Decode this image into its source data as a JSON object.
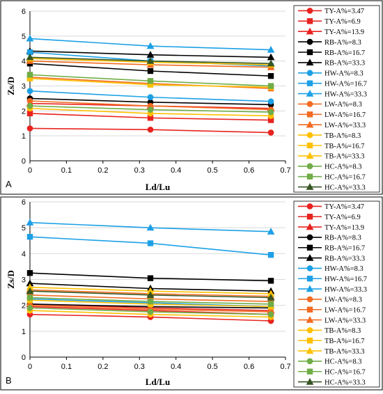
{
  "chart_data": [
    {
      "panel": "A",
      "type": "line",
      "xlabel": "Ld/Lu",
      "ylabel": "Zs/D",
      "xlim": [
        0,
        0.7
      ],
      "ylim": [
        0,
        6
      ],
      "xticks": [
        0,
        0.1,
        0.2,
        0.3,
        0.4,
        0.5,
        0.6,
        0.7
      ],
      "yticks": [
        0,
        1,
        2,
        3,
        4,
        5,
        6
      ],
      "x": [
        0,
        0.33,
        0.66
      ],
      "grid": "horizontal",
      "legend_position": "right",
      "series": [
        {
          "name": "TY-A%=3.47",
          "color": "#e8231f",
          "marker": "circle",
          "values": [
            1.3,
            1.25,
            1.13
          ]
        },
        {
          "name": "TY-A%=6.9",
          "color": "#e8231f",
          "marker": "square",
          "values": [
            1.9,
            1.72,
            1.63
          ]
        },
        {
          "name": "TY-A%=13.9",
          "color": "#e8231f",
          "marker": "triangle",
          "values": [
            2.3,
            2.2,
            2.1
          ]
        },
        {
          "name": "RB-A%=8.3",
          "color": "#000000",
          "marker": "circle",
          "values": [
            2.5,
            2.35,
            2.25
          ]
        },
        {
          "name": "RB-A%=16.7",
          "color": "#000000",
          "marker": "square",
          "values": [
            3.9,
            3.6,
            3.4
          ]
        },
        {
          "name": "RB-A%=33.3",
          "color": "#000000",
          "marker": "triangle",
          "values": [
            4.4,
            4.25,
            4.15
          ]
        },
        {
          "name": "HW-A%=8.3",
          "color": "#1ca0e6",
          "marker": "circle",
          "values": [
            2.8,
            2.55,
            2.38
          ]
        },
        {
          "name": "HW-A%=16.7",
          "color": "#1ca0e6",
          "marker": "square",
          "values": [
            4.35,
            4.0,
            3.8
          ]
        },
        {
          "name": "HW-A%=33.3",
          "color": "#1ca0e6",
          "marker": "triangle",
          "values": [
            4.9,
            4.6,
            4.45
          ]
        },
        {
          "name": "LW-A%=8.3",
          "color": "#f26b21",
          "marker": "circle",
          "values": [
            2.4,
            2.2,
            2.05
          ]
        },
        {
          "name": "LW-A%=16.7",
          "color": "#f26b21",
          "marker": "square",
          "values": [
            3.35,
            3.1,
            2.9
          ]
        },
        {
          "name": "LW-A%=33.3",
          "color": "#f26b21",
          "marker": "triangle",
          "values": [
            4.0,
            3.85,
            3.75
          ]
        },
        {
          "name": "TB-A%=8.3",
          "color": "#ffc000",
          "marker": "circle",
          "values": [
            2.1,
            1.9,
            1.8
          ]
        },
        {
          "name": "TB-A%=16.7",
          "color": "#ffc000",
          "marker": "square",
          "values": [
            3.3,
            3.05,
            2.95
          ]
        },
        {
          "name": "TB-A%=33.3",
          "color": "#ffc000",
          "marker": "triangle",
          "values": [
            4.1,
            3.95,
            3.85
          ]
        },
        {
          "name": "HC-A%=8.3",
          "color": "#70ad47",
          "marker": "circle",
          "values": [
            2.2,
            2.05,
            1.95
          ]
        },
        {
          "name": "HC-A%=16.7",
          "color": "#70ad47",
          "marker": "square",
          "values": [
            3.45,
            3.2,
            3.0
          ]
        },
        {
          "name": "HC-A%=33.3",
          "color": "#375623",
          "marker": "triangle",
          "values": [
            4.15,
            4.0,
            3.9
          ]
        }
      ]
    },
    {
      "panel": "B",
      "type": "line",
      "xlabel": "Ld/Lu",
      "ylabel": "Zs/D",
      "xlim": [
        0,
        0.7
      ],
      "ylim": [
        0,
        6
      ],
      "xticks": [
        0,
        0.1,
        0.2,
        0.3,
        0.4,
        0.5,
        0.6,
        0.7
      ],
      "yticks": [
        0,
        1,
        2,
        3,
        4,
        5,
        6
      ],
      "x": [
        0,
        0.33,
        0.66
      ],
      "grid": "horizontal",
      "legend_position": "right",
      "series": [
        {
          "name": "TY-A%=3.47",
          "color": "#e8231f",
          "marker": "circle",
          "values": [
            1.65,
            1.55,
            1.4
          ]
        },
        {
          "name": "TY-A%=6.9",
          "color": "#e8231f",
          "marker": "square",
          "values": [
            1.95,
            1.8,
            1.65
          ]
        },
        {
          "name": "TY-A%=13.9",
          "color": "#e8231f",
          "marker": "triangle",
          "values": [
            2.05,
            1.9,
            1.8
          ]
        },
        {
          "name": "RB-A%=8.3",
          "color": "#000000",
          "marker": "circle",
          "values": [
            2.05,
            1.95,
            1.9
          ]
        },
        {
          "name": "RB-A%=16.7",
          "color": "#000000",
          "marker": "square",
          "values": [
            3.25,
            3.05,
            2.95
          ]
        },
        {
          "name": "RB-A%=33.3",
          "color": "#000000",
          "marker": "triangle",
          "values": [
            2.85,
            2.65,
            2.55
          ]
        },
        {
          "name": "HW-A%=8.3",
          "color": "#1ca0e6",
          "marker": "circle",
          "values": [
            2.25,
            2.1,
            1.95
          ]
        },
        {
          "name": "HW-A%=16.7",
          "color": "#1ca0e6",
          "marker": "square",
          "values": [
            4.65,
            4.4,
            3.95
          ]
        },
        {
          "name": "HW-A%=33.3",
          "color": "#1ca0e6",
          "marker": "triangle",
          "values": [
            5.2,
            5.0,
            4.85
          ]
        },
        {
          "name": "LW-A%=8.3",
          "color": "#f26b21",
          "marker": "circle",
          "values": [
            2.0,
            1.85,
            1.75
          ]
        },
        {
          "name": "LW-A%=16.7",
          "color": "#f26b21",
          "marker": "square",
          "values": [
            2.4,
            2.25,
            2.15
          ]
        },
        {
          "name": "LW-A%=33.3",
          "color": "#f26b21",
          "marker": "triangle",
          "values": [
            2.6,
            2.45,
            2.35
          ]
        },
        {
          "name": "TB-A%=8.3",
          "color": "#ffc000",
          "marker": "circle",
          "values": [
            1.8,
            1.65,
            1.55
          ]
        },
        {
          "name": "TB-A%=16.7",
          "color": "#ffc000",
          "marker": "square",
          "values": [
            2.2,
            2.05,
            1.95
          ]
        },
        {
          "name": "TB-A%=33.3",
          "color": "#ffc000",
          "marker": "triangle",
          "values": [
            2.7,
            2.55,
            2.45
          ]
        },
        {
          "name": "HC-A%=8.3",
          "color": "#70ad47",
          "marker": "circle",
          "values": [
            1.9,
            1.75,
            1.65
          ]
        },
        {
          "name": "HC-A%=16.7",
          "color": "#70ad47",
          "marker": "square",
          "values": [
            2.3,
            2.15,
            2.05
          ]
        },
        {
          "name": "HC-A%=33.3",
          "color": "#375623",
          "marker": "triangle",
          "values": [
            2.55,
            2.4,
            2.3
          ]
        }
      ]
    }
  ]
}
